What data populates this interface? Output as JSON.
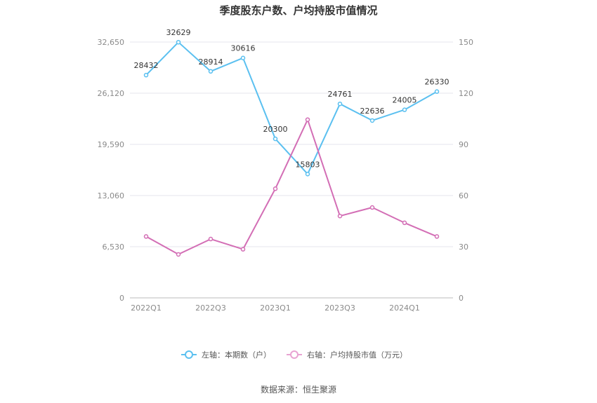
{
  "chart_data": {
    "type": "line",
    "title": "季度股东户数、户均持股市值情况",
    "categories": [
      "2022Q1",
      "2022Q2",
      "2022Q3",
      "2022Q4",
      "2023Q1",
      "2023Q2",
      "2023Q3",
      "2023Q4",
      "2024Q1",
      "2024Q2"
    ],
    "x_tick_labels": [
      "2022Q1",
      "2022Q3",
      "2023Q1",
      "2023Q3",
      "2024Q1"
    ],
    "y_left": {
      "ylim": [
        0,
        32650
      ],
      "ticks": [
        0,
        6530,
        13060,
        19590,
        26120,
        32650
      ],
      "tick_labels": [
        "0",
        "6,530",
        "13,060",
        "19,590",
        "26,120",
        "32,650"
      ]
    },
    "y_right": {
      "ylim": [
        0,
        150
      ],
      "ticks": [
        0,
        30,
        60,
        90,
        120,
        150
      ],
      "tick_labels": [
        "0",
        "30",
        "60",
        "90",
        "120",
        "150"
      ]
    },
    "series": [
      {
        "name": "左轴：本期数（户）",
        "axis": "left",
        "color": "#5bc0f0",
        "values": [
          28432,
          32629,
          28914,
          30616,
          20300,
          15803,
          24761,
          22636,
          24005,
          26330
        ],
        "data_labels": [
          "28432",
          "32629",
          "28914",
          "30616",
          "20300",
          "15803",
          "24761",
          "22636",
          "24005",
          "26330"
        ]
      },
      {
        "name": "右轴：户均持股市值（万元）",
        "axis": "right",
        "color": "#d36eb5",
        "values": [
          36,
          25.5,
          34.5,
          28.5,
          64,
          104.5,
          48,
          53,
          44,
          36
        ]
      }
    ],
    "grid": true,
    "legend_position": "bottom"
  },
  "source_text": "数据来源：恒生聚源"
}
